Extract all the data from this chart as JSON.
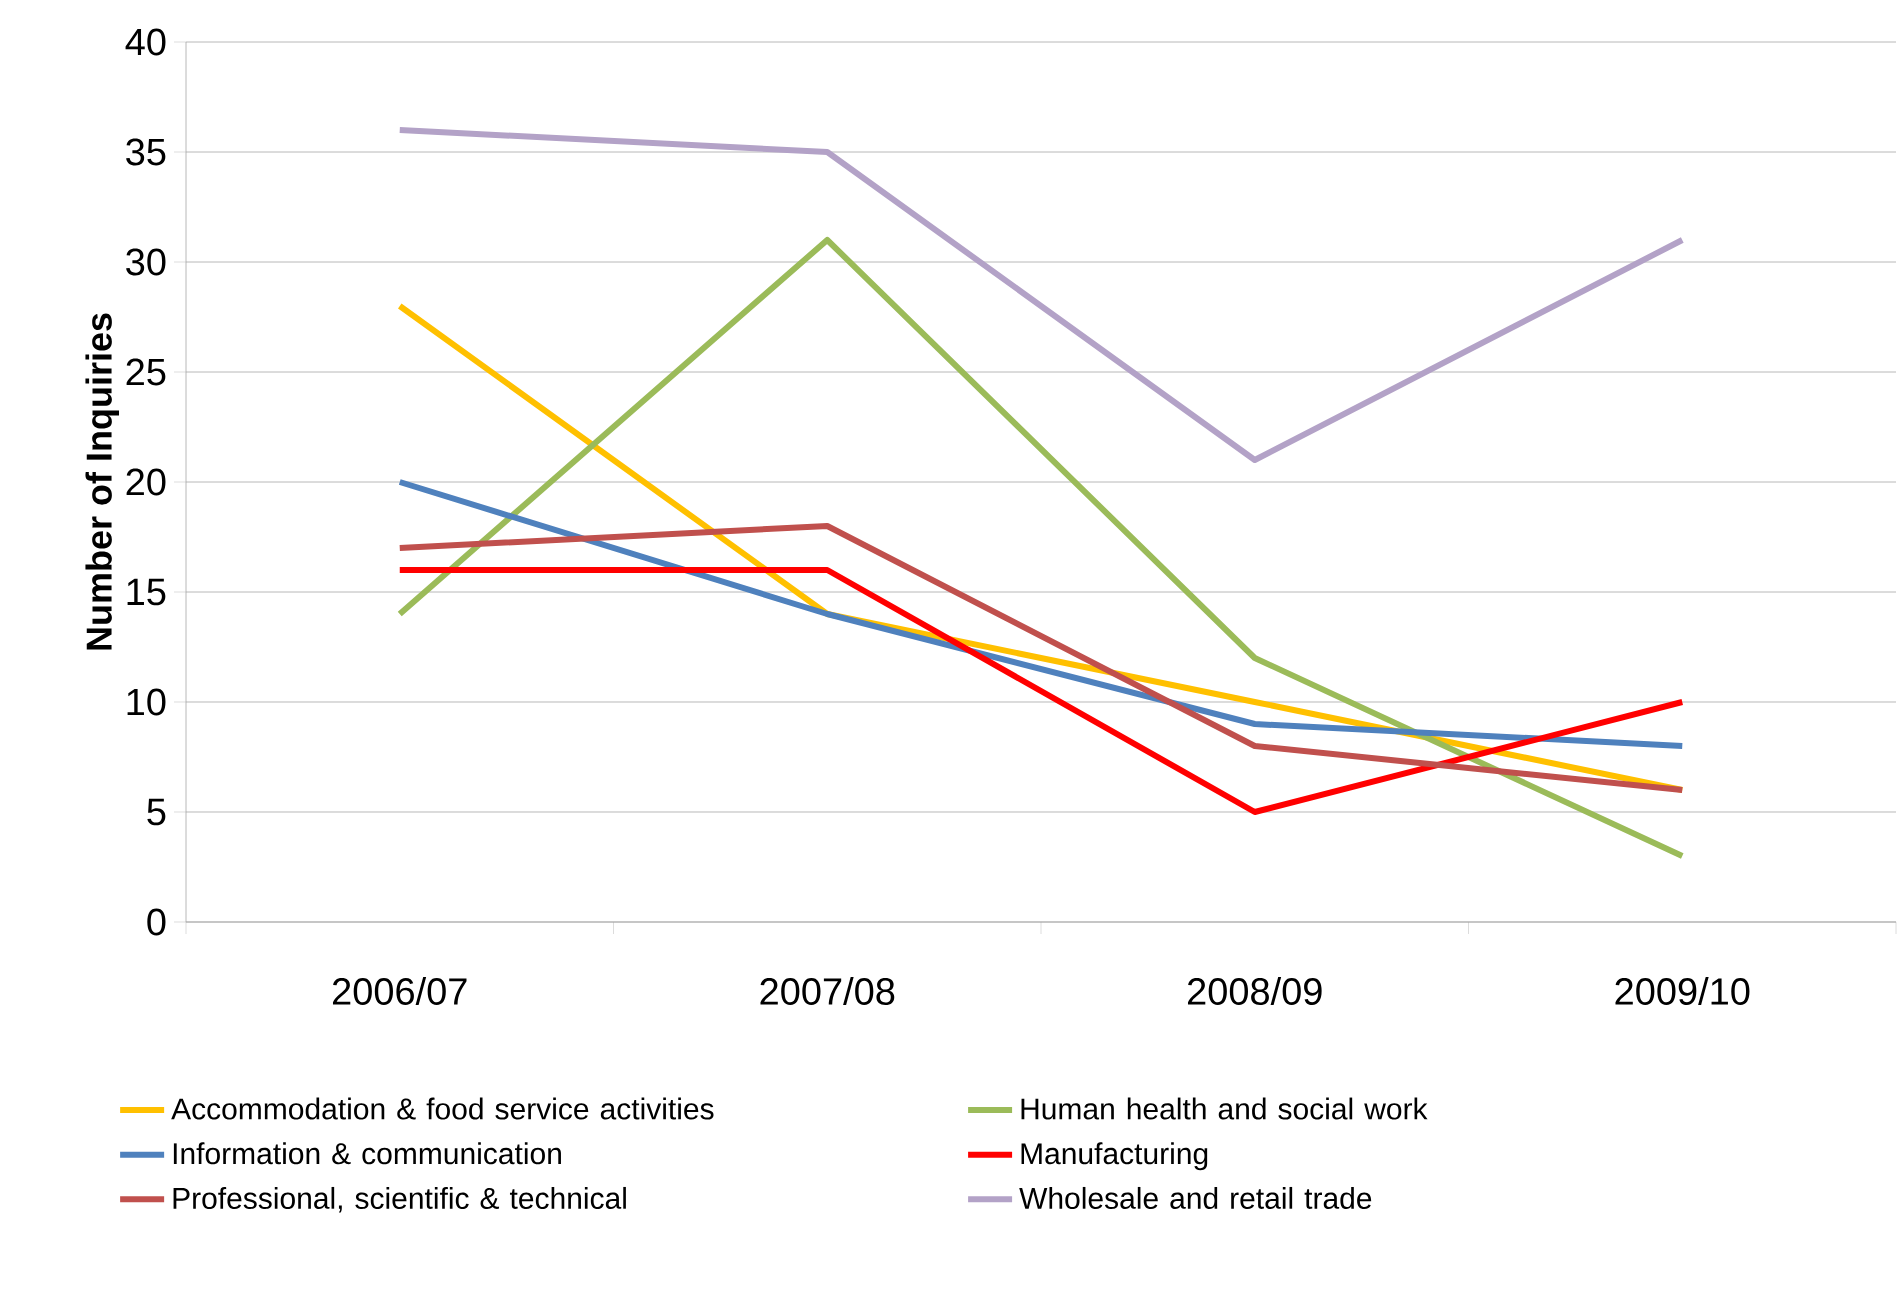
{
  "chart_data": {
    "type": "line",
    "ylabel": "Number of Inquiries",
    "categories": [
      "2006/07",
      "2007/08",
      "2008/09",
      "2009/10"
    ],
    "series": [
      {
        "name": "Accommodation & food service activities",
        "color": "#ffc000",
        "values": [
          28,
          14,
          10,
          6
        ]
      },
      {
        "name": "Human health and social work",
        "color": "#9bbb59",
        "values": [
          14,
          31,
          12,
          3
        ]
      },
      {
        "name": "Information & communication",
        "color": "#4f81bd",
        "values": [
          20,
          14,
          9,
          8
        ]
      },
      {
        "name": "Manufacturing",
        "color": "#ff0000",
        "values": [
          16,
          16,
          5,
          10
        ]
      },
      {
        "name": "Professional, scientific & technical",
        "color": "#c0504d",
        "values": [
          17,
          18,
          8,
          6
        ]
      },
      {
        "name": "Wholesale and retail trade",
        "color": "#b3a2c7",
        "values": [
          36,
          35,
          21,
          31
        ]
      }
    ],
    "ylim": [
      0,
      40
    ],
    "yticks": [
      0,
      5,
      10,
      15,
      20,
      25,
      30,
      35,
      40
    ],
    "grid": "y",
    "legend": "bottom",
    "marker": "none",
    "line_style": "solid"
  }
}
